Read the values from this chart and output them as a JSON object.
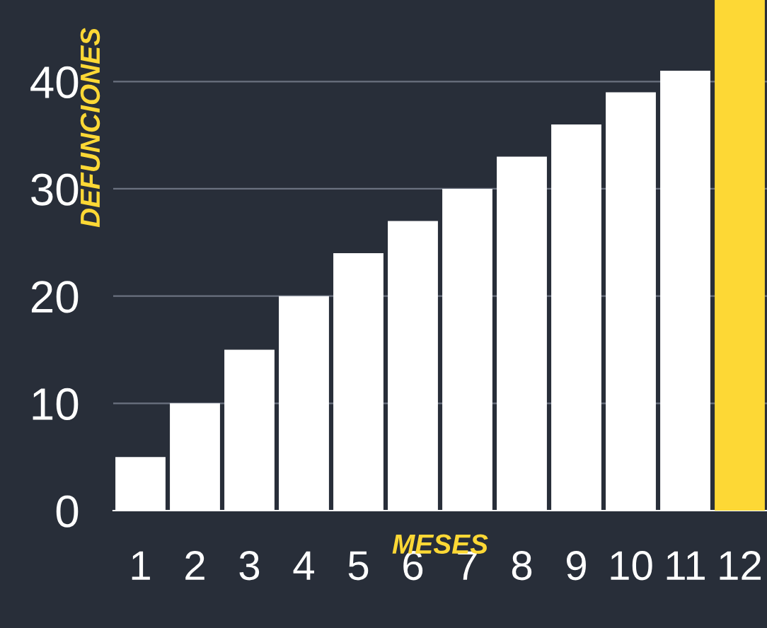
{
  "chart_data": {
    "type": "bar",
    "xlabel": "MESES",
    "ylabel": "DEFUNCIONES",
    "categories": [
      "1",
      "2",
      "3",
      "4",
      "5",
      "6",
      "7",
      "8",
      "9",
      "10",
      "11",
      "12"
    ],
    "values": [
      5,
      10,
      15,
      20,
      24,
      27,
      30,
      33,
      36,
      39,
      41,
      47.6
    ],
    "colors": [
      "#ffffff",
      "#ffffff",
      "#ffffff",
      "#ffffff",
      "#ffffff",
      "#ffffff",
      "#ffffff",
      "#ffffff",
      "#ffffff",
      "#ffffff",
      "#ffffff",
      "#fdd835"
    ],
    "ylim": [
      0,
      47.6
    ],
    "yticks": [
      0,
      10,
      20,
      30,
      40
    ],
    "grid": "y"
  }
}
